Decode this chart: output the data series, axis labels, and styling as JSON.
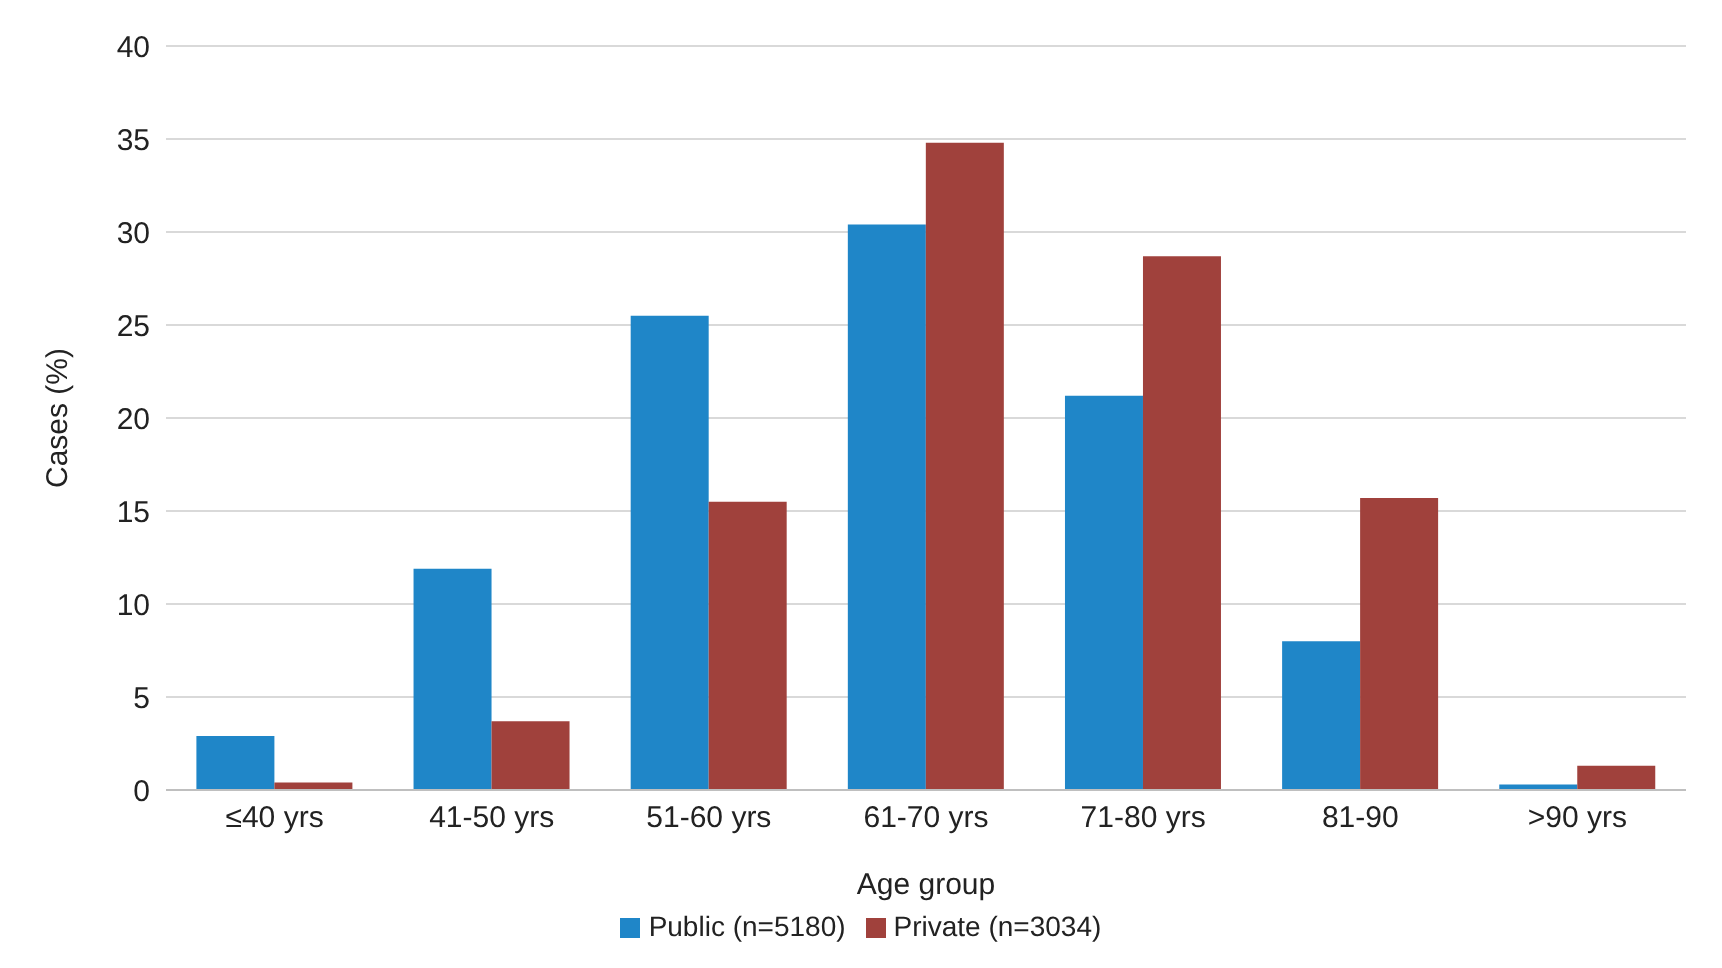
{
  "chart_data": {
    "type": "bar",
    "xlabel": "Age group",
    "ylabel": "Cases (%)",
    "categories": [
      "≤40 yrs",
      "41-50 yrs",
      "51-60 yrs",
      "61-70 yrs",
      "71-80 yrs",
      "81-90",
      ">90 yrs"
    ],
    "series": [
      {
        "name": "Public (n=5180)",
        "color": "#1f86c8",
        "values": [
          2.9,
          11.9,
          25.5,
          30.4,
          21.2,
          8.0,
          0.3
        ]
      },
      {
        "name": "Private (n=3034)",
        "color": "#a0413c",
        "values": [
          0.4,
          3.7,
          15.5,
          34.8,
          28.7,
          15.7,
          1.3
        ]
      }
    ],
    "ylim": [
      0,
      40
    ],
    "yticks": [
      0,
      5,
      10,
      15,
      20,
      25,
      30,
      35,
      40
    ],
    "grid": "y",
    "legend": "bottom"
  }
}
